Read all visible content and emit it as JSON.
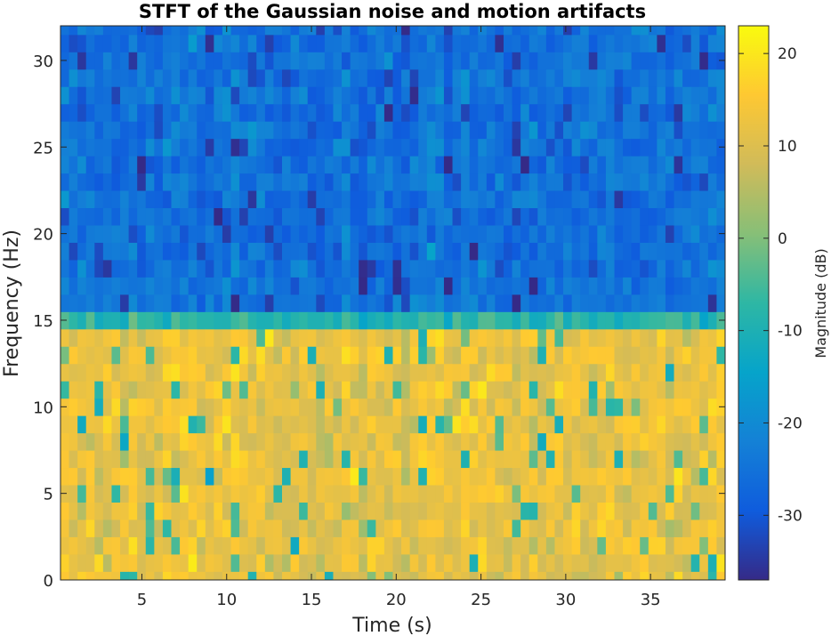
{
  "chart_data": {
    "type": "heatmap",
    "title": "STFT of the Gaussian noise and motion artifacts",
    "xlabel": "Time (s)",
    "ylabel": "Frequency (Hz)",
    "xlim": [
      0.2,
      39.4
    ],
    "ylim": [
      0,
      32
    ],
    "xticks": [
      5,
      10,
      15,
      20,
      25,
      30,
      35
    ],
    "yticks": [
      0,
      5,
      10,
      15,
      20,
      25,
      30
    ],
    "colormap": "parula",
    "colorbar": {
      "label": "Magnitude (dB)",
      "range": [
        -37,
        23
      ],
      "ticks": [
        -30,
        -20,
        -10,
        0,
        10,
        20
      ],
      "tick_labels": [
        "-30",
        "-20",
        "-10",
        "0",
        "10",
        "20"
      ]
    },
    "time_bins": 78,
    "frequency_bins": 33,
    "frequency_band_summary": [
      {
        "band": [
          0,
          15
        ],
        "magnitude_db": 12
      },
      {
        "band": [
          15,
          16
        ],
        "magnitude_db": -8
      },
      {
        "band": [
          16,
          32
        ],
        "magnitude_db": -25
      }
    ],
    "grid": false,
    "legend": "none"
  }
}
